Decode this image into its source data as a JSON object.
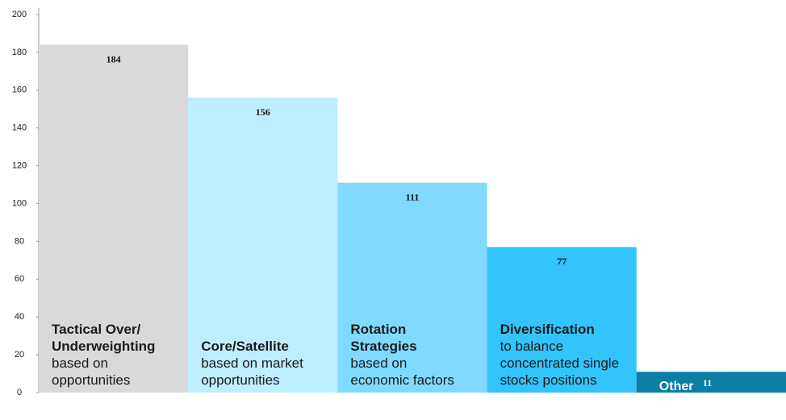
{
  "chart_data": {
    "type": "bar",
    "categories": [
      "Tactical Over/ Underweighting",
      "Core/Satellite",
      "Rotation Strategies",
      "Diversification",
      "Other"
    ],
    "descriptions": [
      "based on opportunities",
      "based on market opportunities",
      "based on economic factors",
      "to balance concentrated single stocks positions",
      null
    ],
    "values": [
      184,
      156,
      111,
      77,
      11
    ],
    "colors": [
      "#d9d9d9",
      "#bdeeff",
      "#80daff",
      "#33c4fc",
      "#0b7ea5"
    ],
    "ylim": [
      0,
      200
    ],
    "yticks": [
      0,
      20,
      40,
      60,
      80,
      100,
      120,
      140,
      160,
      180,
      200
    ]
  }
}
